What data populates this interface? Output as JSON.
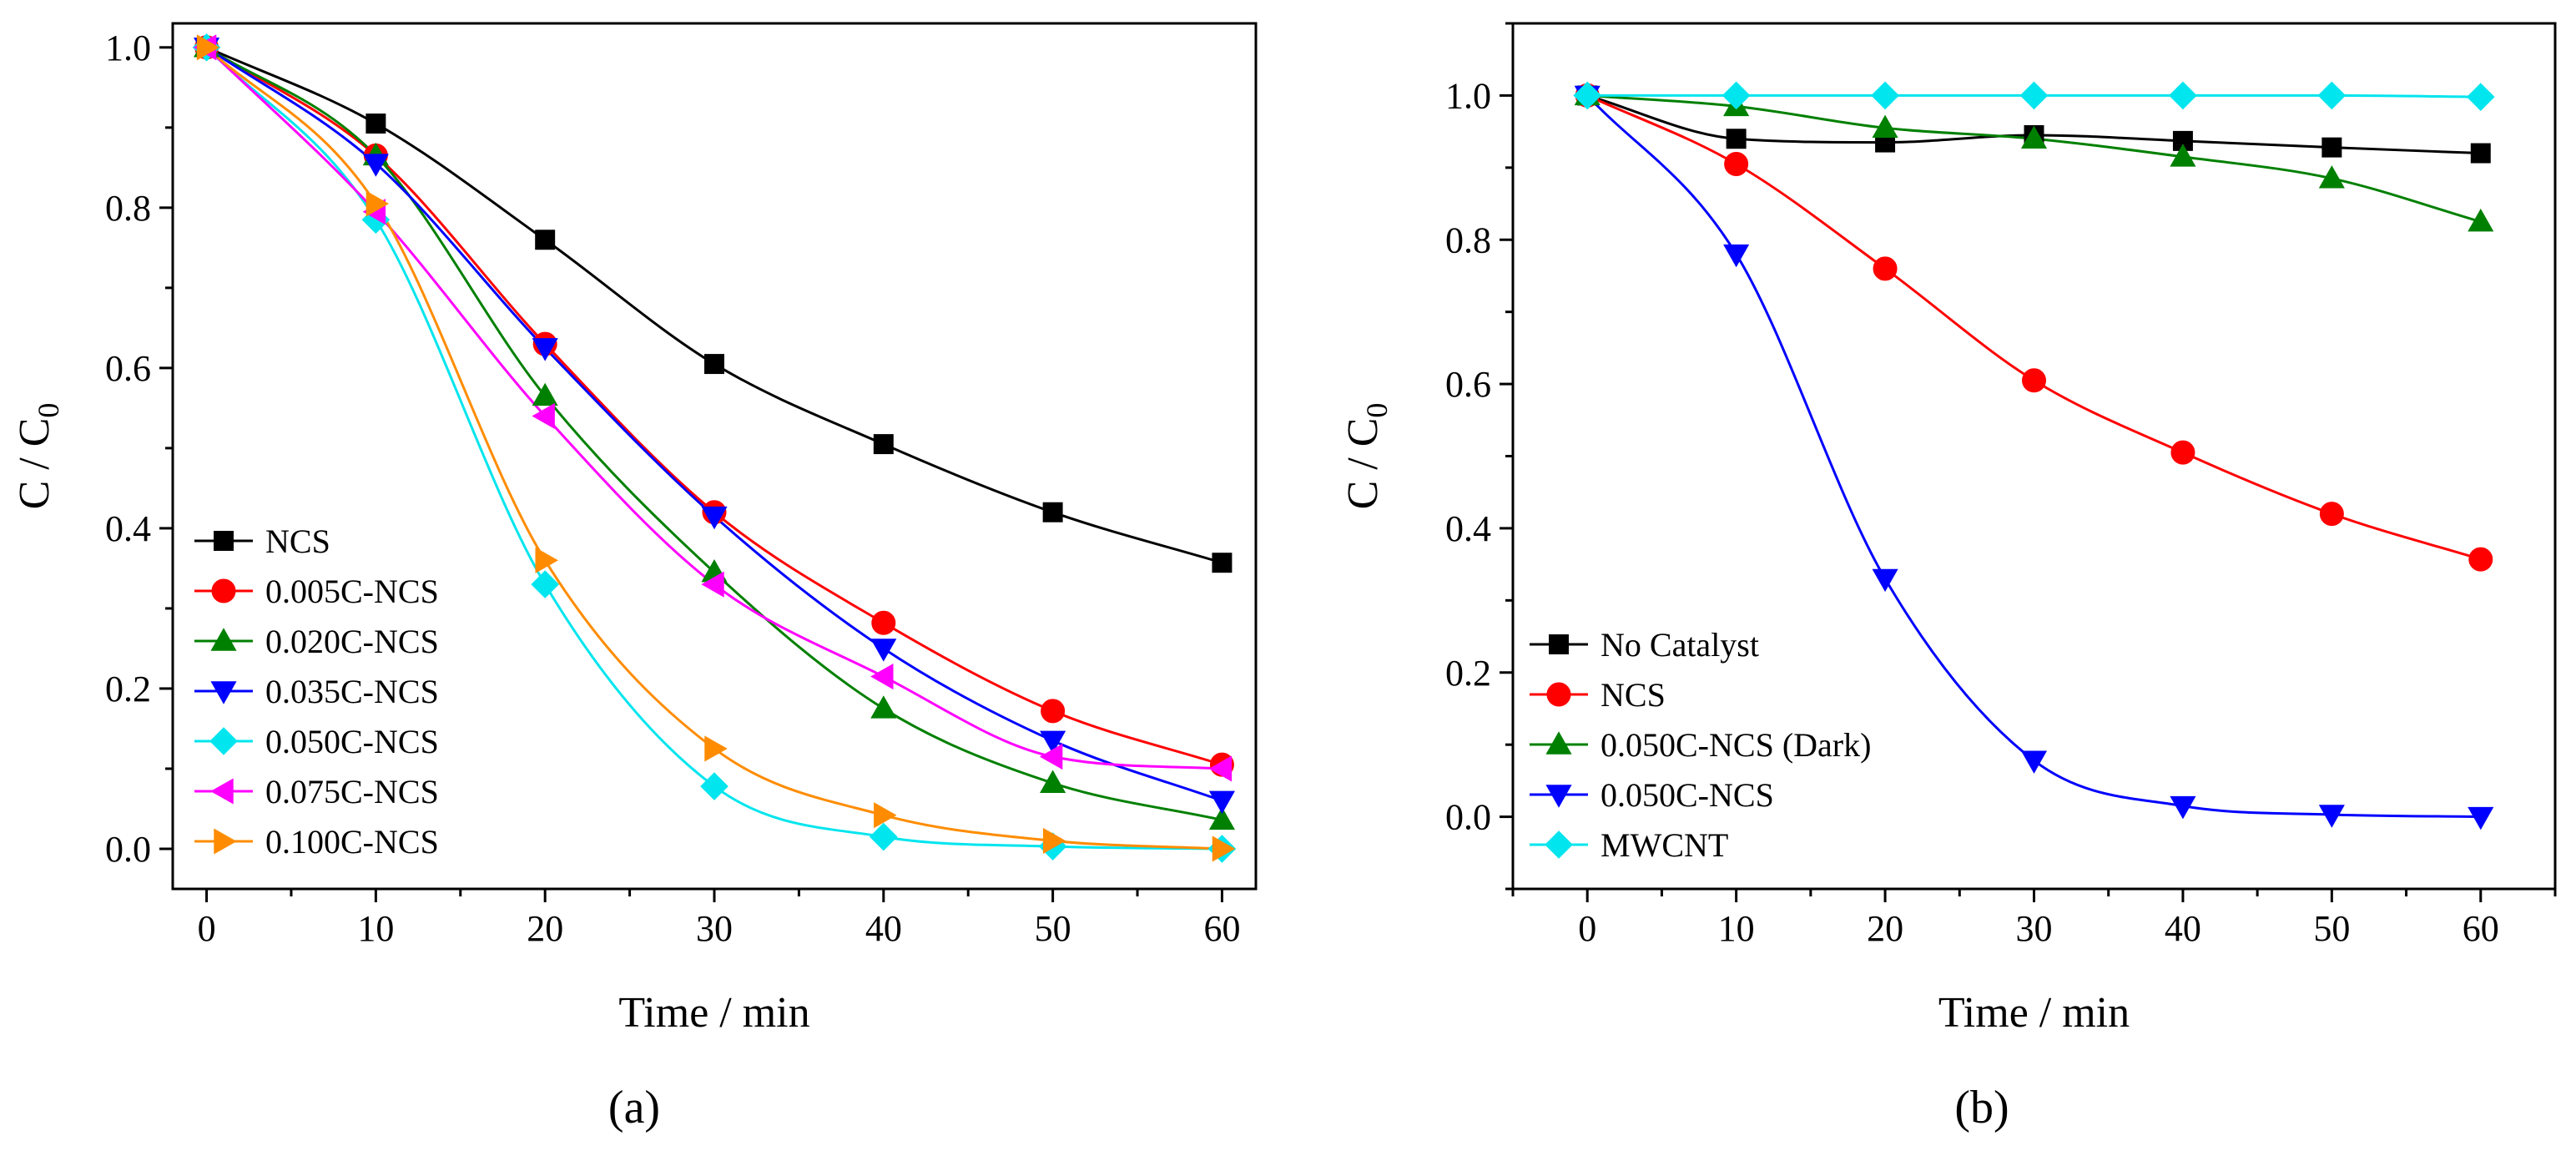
{
  "chart_data": [
    {
      "id": "a",
      "type": "line",
      "panel_label": "(a)",
      "xlabel": "Time / min",
      "ylabel": "C / C",
      "ylabel_subscript": "0",
      "xlim": [
        -2,
        62
      ],
      "ylim": [
        -0.05,
        1.03
      ],
      "xticks": [
        0,
        10,
        20,
        30,
        40,
        50,
        60
      ],
      "yticks": [
        0.0,
        0.2,
        0.4,
        0.6,
        0.8,
        1.0
      ],
      "x_tick_labels": [
        "0",
        "10",
        "20",
        "30",
        "40",
        "50",
        "60"
      ],
      "y_tick_labels": [
        "0.0",
        "0.2",
        "0.4",
        "0.6",
        "0.8",
        "1.0"
      ],
      "legend_position": "bottom-left",
      "x": [
        0,
        10,
        20,
        30,
        40,
        50,
        60
      ],
      "series": [
        {
          "name": "NCS",
          "color": "#000000",
          "marker": "square",
          "values": [
            1.0,
            0.905,
            0.76,
            0.605,
            0.505,
            0.42,
            0.357
          ]
        },
        {
          "name": "0.005C-NCS",
          "color": "#ff0000",
          "marker": "circle",
          "values": [
            1.0,
            0.865,
            0.63,
            0.42,
            0.282,
            0.172,
            0.105
          ]
        },
        {
          "name": "0.020C-NCS",
          "color": "#008000",
          "marker": "triangle-up",
          "values": [
            1.0,
            0.865,
            0.565,
            0.345,
            0.175,
            0.082,
            0.036
          ]
        },
        {
          "name": "0.035C-NCS",
          "color": "#0000ff",
          "marker": "triangle-down",
          "values": [
            1.0,
            0.855,
            0.625,
            0.415,
            0.25,
            0.135,
            0.06
          ]
        },
        {
          "name": "0.050C-NCS",
          "color": "#00e5ee",
          "marker": "diamond",
          "values": [
            1.0,
            0.785,
            0.33,
            0.078,
            0.015,
            0.003,
            0.0
          ]
        },
        {
          "name": "0.075C-NCS",
          "color": "#ff00ff",
          "marker": "triangle-left",
          "values": [
            1.0,
            0.795,
            0.54,
            0.33,
            0.215,
            0.115,
            0.1
          ]
        },
        {
          "name": "0.100C-NCS",
          "color": "#ff8c00",
          "marker": "triangle-right",
          "values": [
            1.0,
            0.805,
            0.36,
            0.125,
            0.042,
            0.01,
            0.0
          ]
        }
      ]
    },
    {
      "id": "b",
      "type": "line",
      "panel_label": "(b)",
      "xlabel": "Time / min",
      "ylabel": "C / C",
      "ylabel_subscript": "0",
      "xlim": [
        -5,
        65
      ],
      "ylim": [
        -0.1,
        1.1
      ],
      "xticks": [
        0,
        10,
        20,
        30,
        40,
        50,
        60
      ],
      "yticks": [
        0.0,
        0.2,
        0.4,
        0.6,
        0.8,
        1.0
      ],
      "x_tick_labels": [
        "0",
        "10",
        "20",
        "30",
        "40",
        "50",
        "60"
      ],
      "y_tick_labels": [
        "0.0",
        "0.2",
        "0.4",
        "0.6",
        "0.8",
        "1.0"
      ],
      "legend_position": "bottom-left",
      "x": [
        0,
        10,
        20,
        30,
        40,
        50,
        60
      ],
      "series": [
        {
          "name": "No Catalyst",
          "color": "#000000",
          "marker": "square",
          "values": [
            1.0,
            0.94,
            0.935,
            0.945,
            0.937,
            0.928,
            0.92
          ]
        },
        {
          "name": "NCS",
          "color": "#ff0000",
          "marker": "circle",
          "values": [
            1.0,
            0.905,
            0.76,
            0.605,
            0.505,
            0.42,
            0.357
          ]
        },
        {
          "name": "0.050C-NCS (Dark)",
          "color": "#008000",
          "marker": "triangle-up",
          "values": [
            1.0,
            0.985,
            0.955,
            0.94,
            0.915,
            0.885,
            0.825
          ]
        },
        {
          "name": "0.050C-NCS",
          "color": "#0000ff",
          "marker": "triangle-down",
          "values": [
            1.0,
            0.78,
            0.33,
            0.078,
            0.015,
            0.003,
            0.0
          ]
        },
        {
          "name": "MWCNT",
          "color": "#00e5ee",
          "marker": "diamond",
          "values": [
            1.0,
            1.0,
            1.0,
            1.0,
            1.0,
            1.0,
            0.998
          ]
        }
      ]
    }
  ]
}
